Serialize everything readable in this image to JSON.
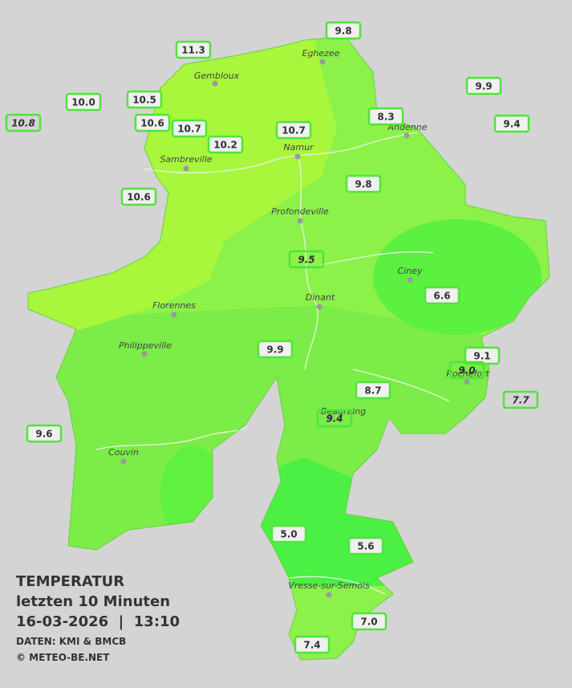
{
  "title": {
    "line1": "TEMPERATUR",
    "line2": "letzten 10 Minuten",
    "line3": "16-03-2026  |  13:10",
    "source": "DATEN: KMI & BMCB",
    "copyright": "© METEO-BE.NET"
  },
  "stations": [
    {
      "label": "9.8"
    },
    {
      "label": "11.3"
    },
    {
      "label": "9.9"
    },
    {
      "label": "10.0"
    },
    {
      "label": "10.5"
    },
    {
      "label": "8.3"
    },
    {
      "label": "9.4"
    },
    {
      "label": "10.8",
      "italic": true
    },
    {
      "label": "10.6"
    },
    {
      "label": "10.7"
    },
    {
      "label": "10.7"
    },
    {
      "label": "10.2"
    },
    {
      "label": "9.8"
    },
    {
      "label": "10.6"
    },
    {
      "label": "9.5",
      "italic": true
    },
    {
      "label": "6.6"
    },
    {
      "label": "9.9"
    },
    {
      "label": "9.1"
    },
    {
      "label": "9.0",
      "italic": true
    },
    {
      "label": "8.7"
    },
    {
      "label": "7.7",
      "italic": true
    },
    {
      "label": "9.4",
      "italic": true
    },
    {
      "label": "9.6"
    },
    {
      "label": "5.0"
    },
    {
      "label": "5.6"
    },
    {
      "label": "7.0"
    },
    {
      "label": "7.4"
    }
  ],
  "towns": [
    "Eghezee",
    "Gembloux",
    "Andenne",
    "Namur",
    "Sambreville",
    "Profondeville",
    "Ciney",
    "Dinant",
    "Florennes",
    "Philippeville",
    "Rochefort",
    "Beauraing",
    "Couvin",
    "Vresse-sur-Semois"
  ]
}
